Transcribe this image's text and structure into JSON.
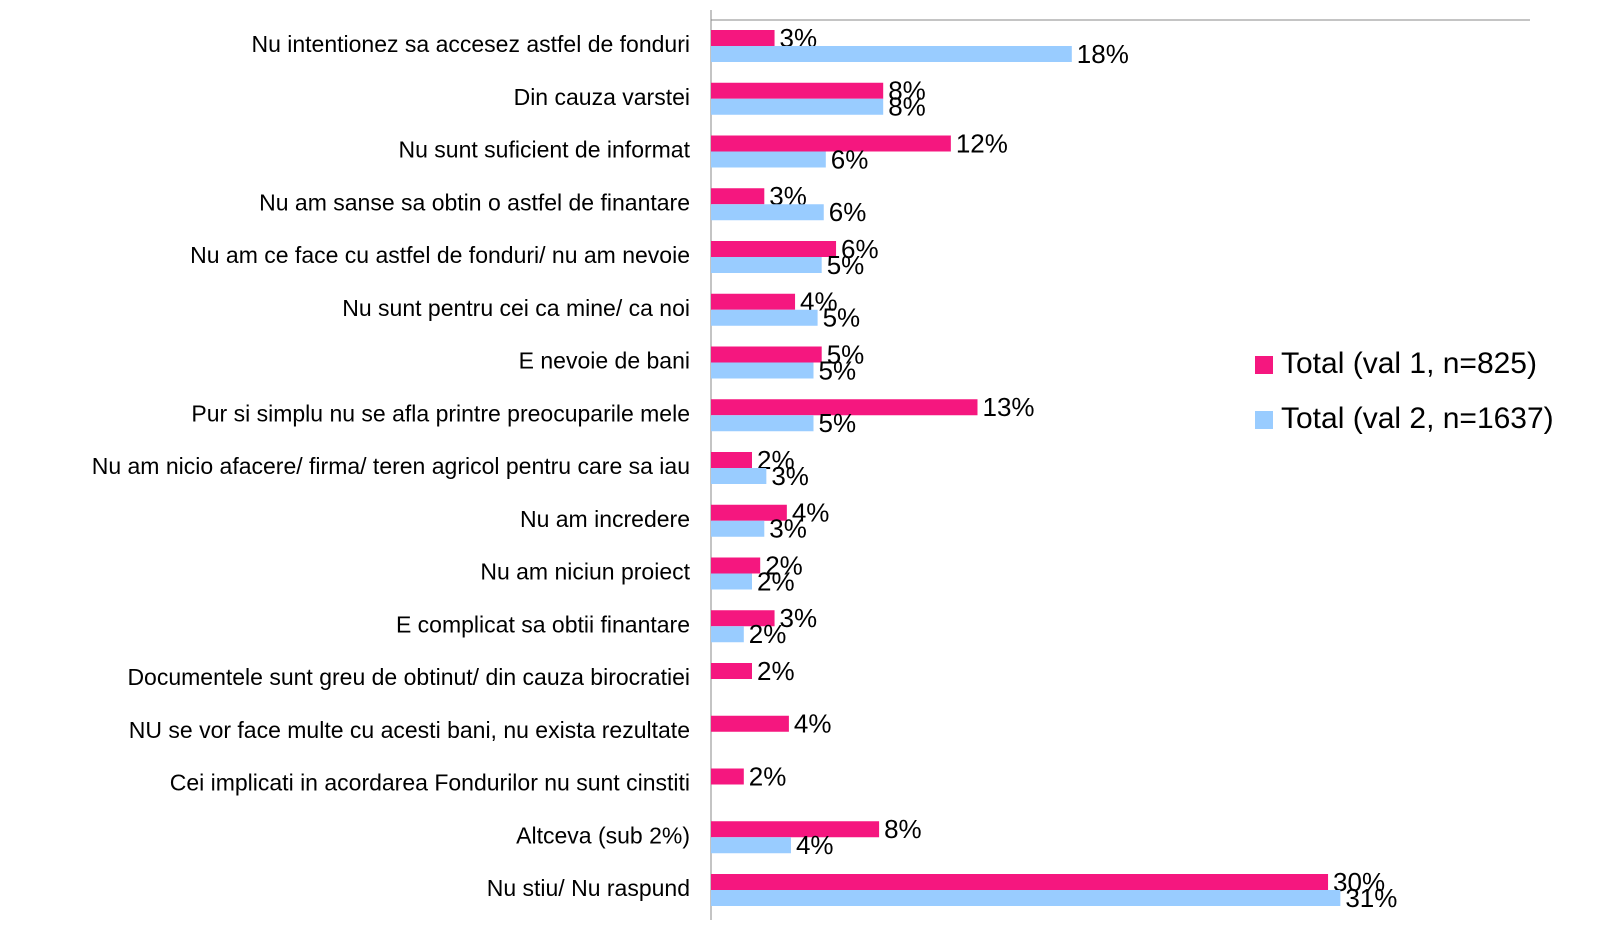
{
  "chart_data": {
    "type": "bar",
    "orientation": "horizontal",
    "categories": [
      "Nu intentionez sa accesez astfel de fonduri",
      "Din cauza varstei",
      "Nu sunt suficient de informat",
      "Nu am sanse sa obtin o astfel de finantare",
      "Nu am ce face cu astfel de fonduri/ nu am nevoie",
      "Nu sunt pentru cei ca mine/ ca noi",
      "E nevoie de bani",
      "Pur si simplu nu se afla printre preocuparile mele",
      "Nu am nicio afacere/ firma/ teren agricol pentru care sa iau",
      "Nu am incredere",
      "Nu am niciun proiect",
      "E complicat sa obtii finantare",
      "Documentele sunt greu de obtinut/ din cauza birocratiei",
      "NU se vor face multe cu acesti bani, nu exista rezultate",
      "Cei implicati in acordarea Fondurilor nu sunt cinstiti",
      "Altceva (sub 2%)",
      "Nu stiu/ Nu raspund"
    ],
    "series": [
      {
        "name": "Total (val 1, n=825)",
        "color": "#f5177f",
        "values": [
          3.1,
          8.4,
          11.7,
          2.6,
          6.1,
          4.1,
          5.4,
          13.0,
          2.0,
          3.7,
          2.4,
          3.1,
          2.0,
          3.8,
          1.6,
          8.2,
          30.1
        ],
        "value_labels": [
          "3%",
          "8%",
          "12%",
          "3%",
          "6%",
          "4%",
          "5%",
          "13%",
          "2%",
          "4%",
          "2%",
          "3%",
          "2%",
          "4%",
          "2%",
          "8%",
          "30%"
        ]
      },
      {
        "name": "Total (val 2, n=1637)",
        "color": "#99ccff",
        "values": [
          17.6,
          8.4,
          5.6,
          5.5,
          5.4,
          5.2,
          5.0,
          5.0,
          2.7,
          2.6,
          2.0,
          1.6,
          null,
          null,
          null,
          3.9,
          30.7
        ],
        "value_labels": [
          "18%",
          "8%",
          "6%",
          "6%",
          "5%",
          "5%",
          "5%",
          "5%",
          "3%",
          "3%",
          "2%",
          "2%",
          null,
          null,
          null,
          "4%",
          "31%"
        ]
      }
    ],
    "xlim": [
      0,
      40
    ],
    "legend": "right"
  }
}
